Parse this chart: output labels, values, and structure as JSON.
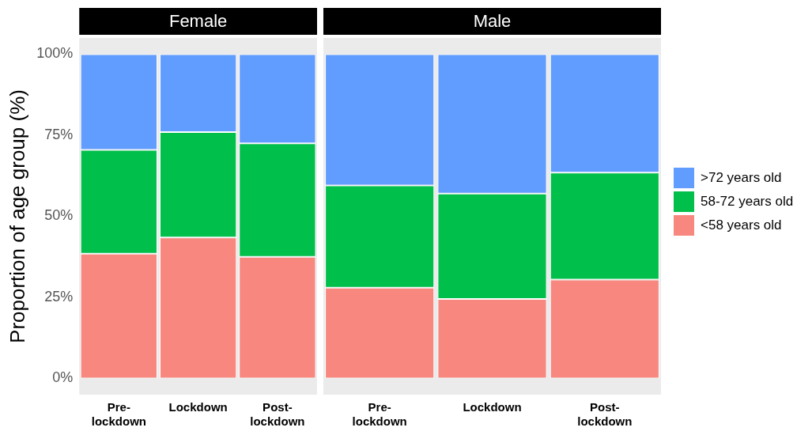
{
  "chart_data": [
    {
      "type": "bar",
      "title": "Female",
      "ylabel": "Proportion of age group (%)",
      "categories": [
        "Pre-lockdown",
        "Lockdown",
        "Post-lockdown"
      ],
      "stacked": true,
      "ylim": [
        -5,
        105
      ],
      "yticks": [
        {
          "value": 0,
          "label": "0%"
        },
        {
          "value": 25,
          "label": "25%"
        },
        {
          "value": 50,
          "label": "50%"
        },
        {
          "value": 75,
          "label": "75%"
        },
        {
          "value": 100,
          "label": "100%"
        }
      ],
      "legend": false,
      "series": [
        {
          "color": "#f8877f",
          "values": [
            38.5,
            43.5,
            37.5
          ]
        },
        {
          "color": "#00c04b",
          "values": [
            32,
            32.5,
            35
          ]
        },
        {
          "color": "#619cff",
          "values": [
            29.5,
            24,
            27.5
          ]
        }
      ]
    },
    {
      "type": "bar",
      "title": "Male",
      "categories": [
        "Pre-lockdown",
        "Lockdown",
        "Post-lockdown"
      ],
      "stacked": true,
      "ylim": [
        -5,
        105
      ],
      "tick_labels": "x",
      "legend": "right",
      "series": [
        {
          "name": "<58 years old",
          "color": "#f8877f",
          "values": [
            28,
            24.5,
            30.5
          ]
        },
        {
          "name": "58-72 years old",
          "color": "#00c04b",
          "values": [
            31.5,
            32.5,
            33
          ]
        },
        {
          "name": ">72 years old",
          "color": "#619cff",
          "values": [
            40.5,
            43,
            36.5
          ]
        }
      ]
    }
  ]
}
